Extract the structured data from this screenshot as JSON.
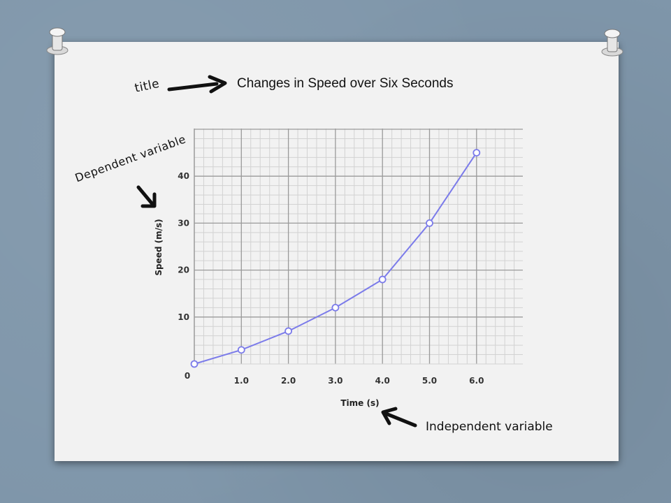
{
  "annotations": {
    "title_label": "title",
    "dependent_label": "Dependent variable",
    "independent_label": "Independent variable"
  },
  "chart_data": {
    "type": "line",
    "title": "Changes in Speed over Six Seconds",
    "xlabel": "Time (s)",
    "ylabel": "Speed (m/s)",
    "x": [
      0,
      1,
      2,
      3,
      4,
      5,
      6
    ],
    "series": [
      {
        "values": [
          0,
          3,
          7,
          12,
          18,
          30,
          45
        ]
      }
    ],
    "x_ticks": [
      "0",
      "1.0",
      "2.0",
      "3.0",
      "4.0",
      "5.0",
      "6.0"
    ],
    "y_ticks": [
      "10",
      "20",
      "30",
      "40"
    ],
    "xlim": [
      0,
      7
    ],
    "ylim": [
      0,
      48
    ],
    "grid": true,
    "colors": {
      "line": "#7b7bea",
      "grid_major": "#9a9a9a",
      "grid_minor": "#d2d2d2"
    }
  }
}
